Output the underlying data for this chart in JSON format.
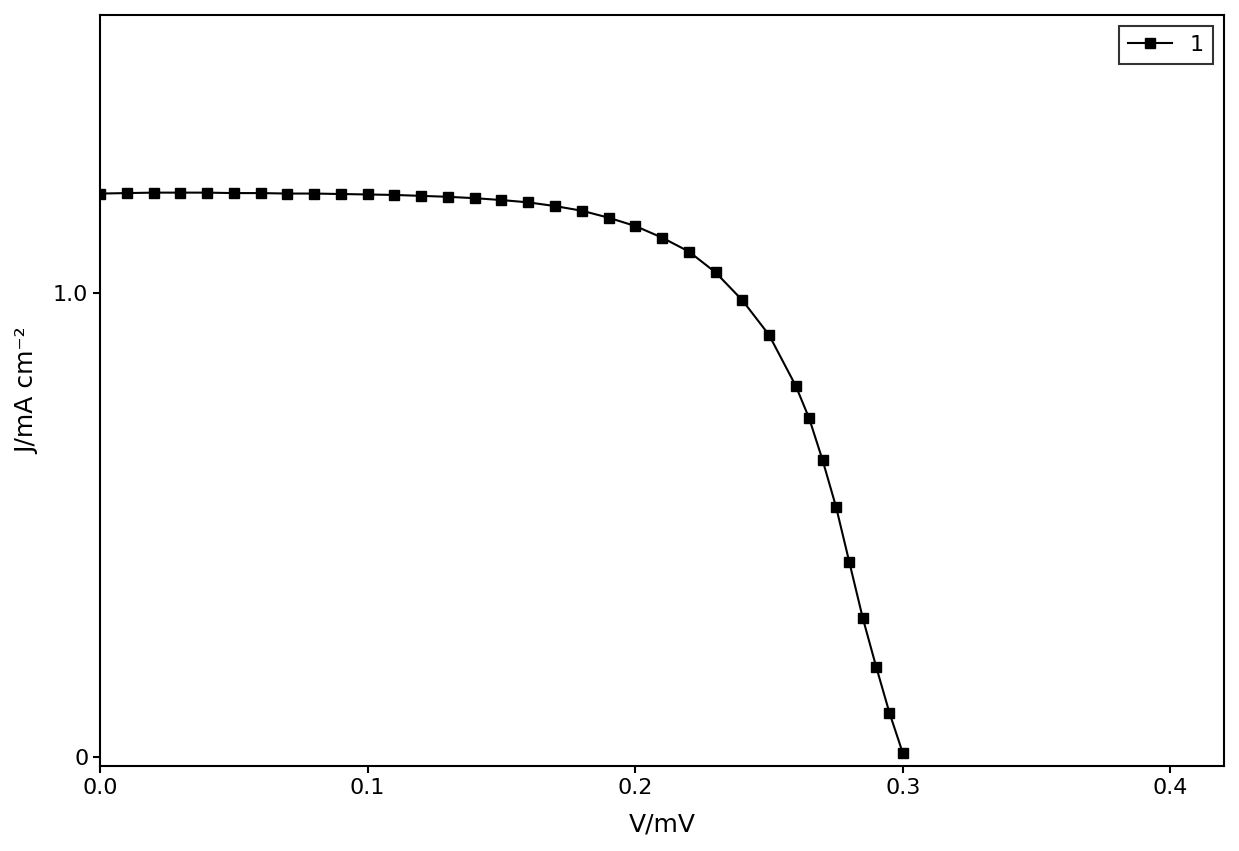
{
  "x": [
    0.0,
    0.01,
    0.02,
    0.03,
    0.04,
    0.05,
    0.06,
    0.07,
    0.08,
    0.09,
    0.1,
    0.11,
    0.12,
    0.13,
    0.14,
    0.15,
    0.16,
    0.17,
    0.18,
    0.19,
    0.2,
    0.21,
    0.22,
    0.23,
    0.24,
    0.25,
    0.26,
    0.265,
    0.27,
    0.275,
    0.28,
    0.285,
    0.29,
    0.295,
    0.3
  ],
  "y": [
    1.215,
    1.216,
    1.217,
    1.217,
    1.217,
    1.216,
    1.216,
    1.215,
    1.215,
    1.214,
    1.213,
    1.212,
    1.21,
    1.208,
    1.205,
    1.201,
    1.196,
    1.188,
    1.178,
    1.163,
    1.145,
    1.12,
    1.09,
    1.045,
    0.985,
    0.91,
    0.8,
    0.73,
    0.64,
    0.54,
    0.42,
    0.3,
    0.195,
    0.095,
    0.008
  ],
  "line_color": "#000000",
  "marker": "s",
  "marker_color": "#000000",
  "marker_size": 7,
  "line_width": 1.5,
  "xlabel": "V/mV",
  "ylabel": "J/mA cm⁻²",
  "xlim": [
    0.0,
    0.42
  ],
  "ylim": [
    -0.02,
    1.6
  ],
  "xticks": [
    0.0,
    0.1,
    0.2,
    0.3,
    0.4
  ],
  "yticks": [
    0,
    1.0
  ],
  "legend_label": "1",
  "legend_loc": "upper right",
  "background_color": "#ffffff",
  "axes_linewidth": 1.5,
  "figure_facecolor": "#ffffff",
  "font_size": 16
}
